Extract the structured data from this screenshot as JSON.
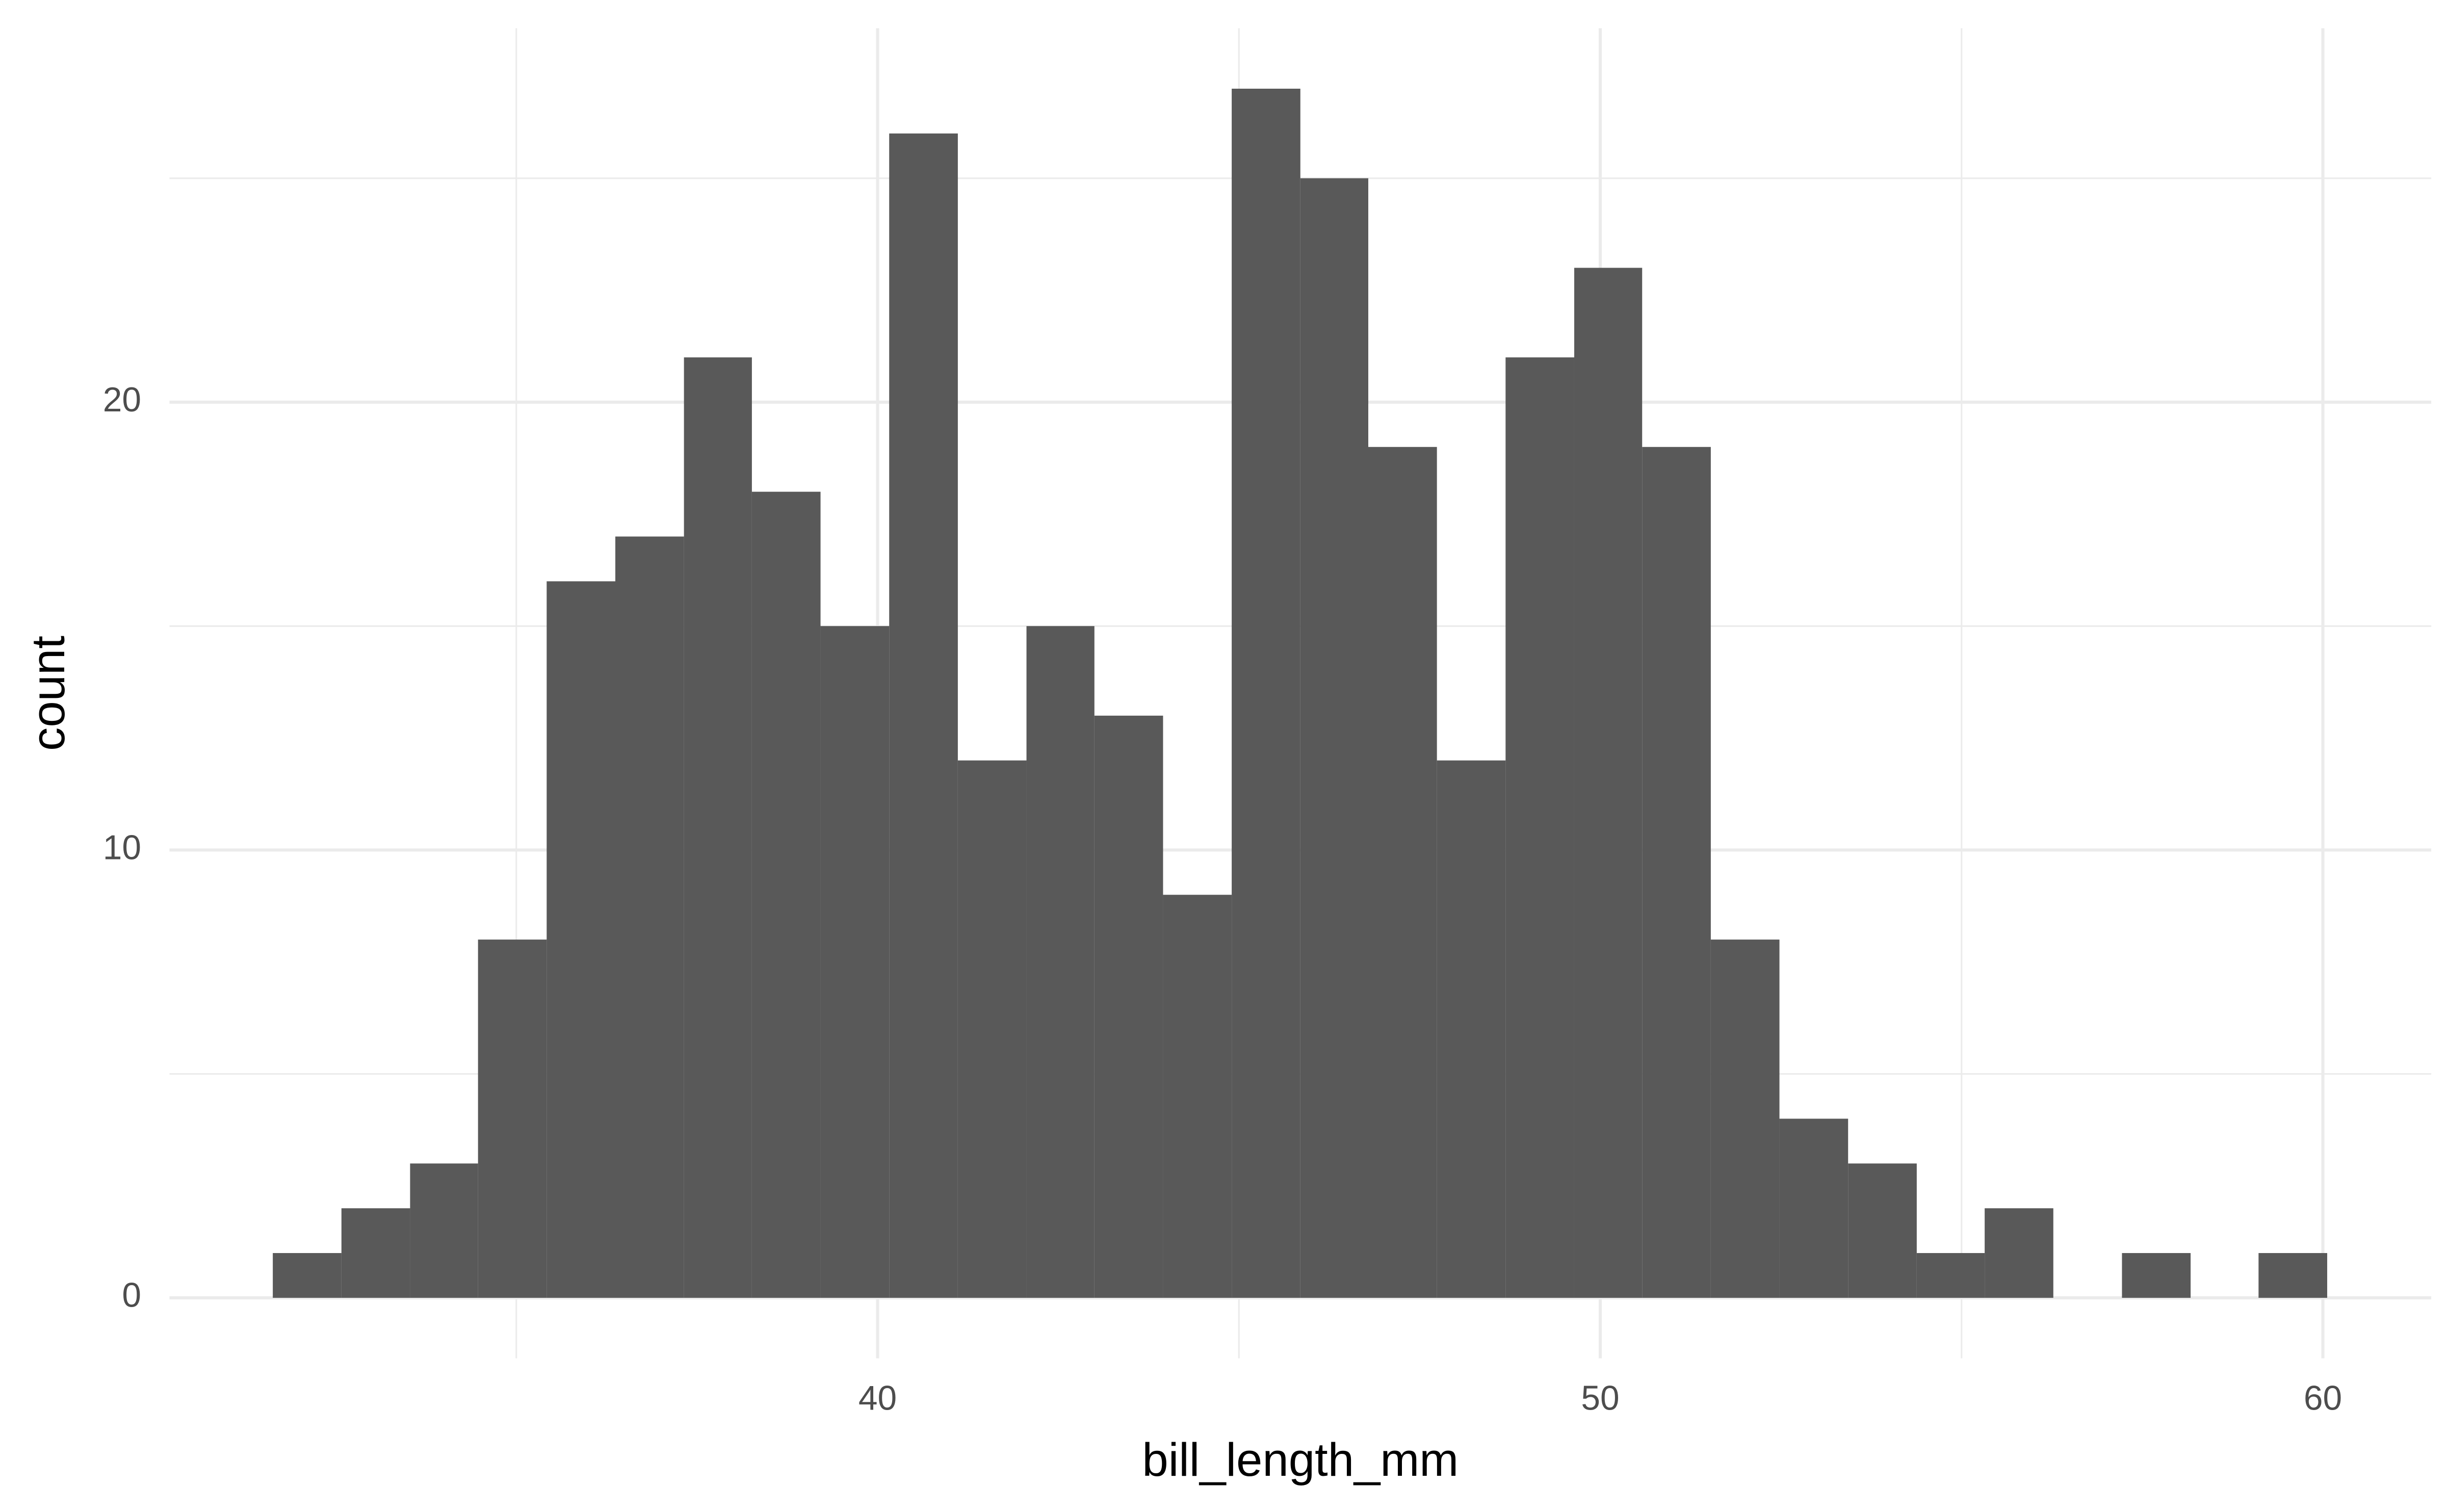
{
  "chart_data": {
    "type": "histogram",
    "x_label": "bill_length_mm",
    "y_label": "count",
    "bins": [
      31.63,
      32.58,
      33.53,
      34.47,
      35.42,
      36.37,
      37.32,
      38.26,
      39.21,
      40.16,
      41.11,
      42.06,
      43.0,
      43.95,
      44.9,
      45.85,
      46.79,
      47.74,
      48.69,
      49.64,
      50.58,
      51.53,
      52.48,
      53.43,
      54.38,
      55.32,
      56.27,
      57.22,
      58.17,
      59.11,
      60.06
    ],
    "counts": [
      1,
      2,
      3,
      8,
      16,
      17,
      21,
      18,
      15,
      26,
      12,
      15,
      13,
      9,
      27,
      25,
      19,
      12,
      21,
      23,
      19,
      8,
      4,
      3,
      1,
      2,
      0,
      1,
      0,
      1
    ],
    "color": "#595959",
    "xlim": [
      30.2,
      61.5
    ],
    "xticks": [
      40,
      50,
      60
    ],
    "x_minor_ticks": [
      35,
      45,
      55
    ],
    "ylim": [
      -1.35,
      28.35
    ],
    "yticks": [
      0,
      10,
      20
    ],
    "y_minor_ticks": [
      5,
      15,
      25
    ],
    "grid": true
  }
}
